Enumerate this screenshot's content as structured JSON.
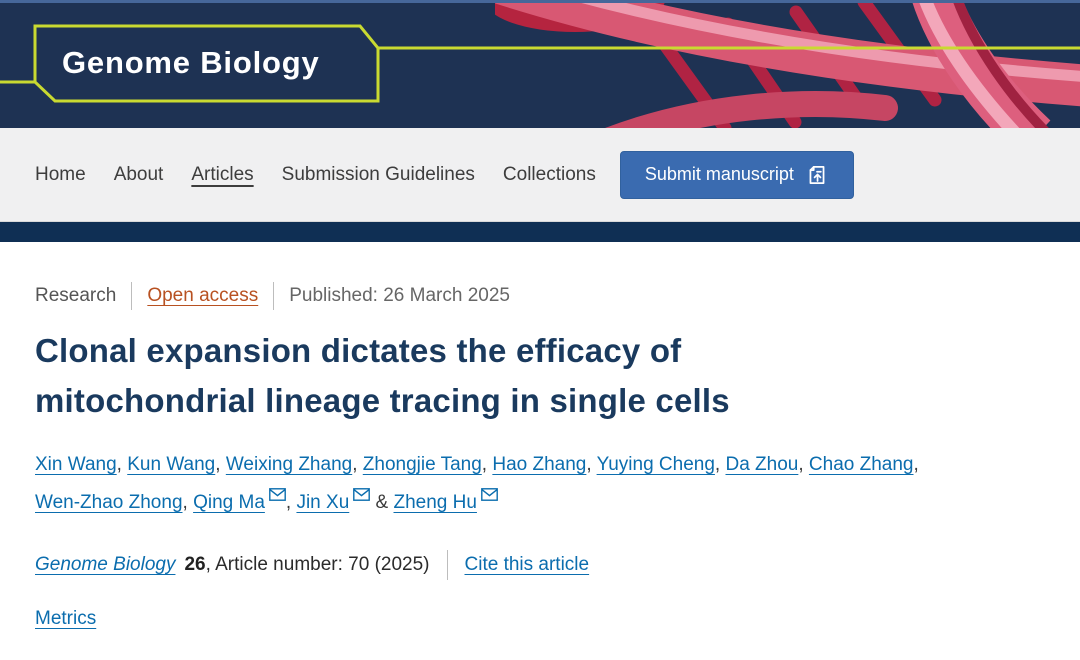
{
  "colors": {
    "header_bg": "#1e3253",
    "header_top_line": "#46679a",
    "accent_lime": "#c9da31",
    "strip_bg": "#0f2f54",
    "nav_bg": "#f0f0f1",
    "submit_button_bg": "#3a6bb0",
    "link_blue": "#0b6dae",
    "open_access_orange": "#b85121",
    "title_navy": "#1a3a5e",
    "dna_pink": "#d85873",
    "dna_dark_red": "#b02343"
  },
  "header": {
    "logo": "Genome Biology"
  },
  "nav": {
    "items": [
      {
        "label": "Home",
        "active": false
      },
      {
        "label": "About",
        "active": false
      },
      {
        "label": "Articles",
        "active": true
      },
      {
        "label": "Submission Guidelines",
        "active": false
      },
      {
        "label": "Collections",
        "active": false
      }
    ],
    "submit_label": "Submit manuscript"
  },
  "article": {
    "type_label": "Research",
    "access_label": "Open access",
    "published_label": "Published: 26 March 2025",
    "title_line1": "Clonal expansion dictates the efficacy of",
    "title_line2": "mitochondrial lineage tracing in single cells",
    "authors": [
      {
        "name": "Xin Wang",
        "sep": ", ",
        "email": false,
        "break_after": false
      },
      {
        "name": "Kun Wang",
        "sep": ", ",
        "email": false,
        "break_after": false
      },
      {
        "name": "Weixing Zhang",
        "sep": ", ",
        "email": false,
        "break_after": false
      },
      {
        "name": "Zhongjie Tang",
        "sep": ", ",
        "email": false,
        "break_after": false
      },
      {
        "name": "Hao Zhang",
        "sep": ", ",
        "email": false,
        "break_after": false
      },
      {
        "name": "Yuying Cheng",
        "sep": ", ",
        "email": false,
        "break_after": false
      },
      {
        "name": "Da Zhou",
        "sep": ", ",
        "email": false,
        "break_after": false
      },
      {
        "name": "Chao Zhang",
        "sep": ",",
        "email": false,
        "break_after": true
      },
      {
        "name": "Wen-Zhao Zhong",
        "sep": ", ",
        "email": false,
        "break_after": false
      },
      {
        "name": "Qing Ma",
        "sep": ", ",
        "email": true,
        "break_after": false
      },
      {
        "name": "Jin Xu",
        "sep": " & ",
        "email": true,
        "break_after": false
      },
      {
        "name": "Zheng Hu",
        "sep": "",
        "email": true,
        "break_after": false
      }
    ],
    "citation": {
      "journal": "Genome Biology",
      "volume": "26",
      "article_info": ", Article number: 70 (2025)",
      "cite_link": "Cite this article"
    },
    "metrics_link": "Metrics"
  }
}
